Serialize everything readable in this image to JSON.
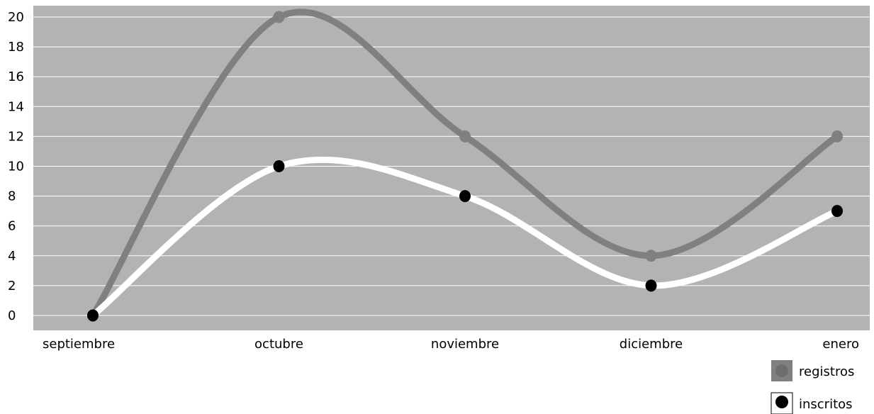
{
  "chart_data": {
    "type": "line",
    "title": "",
    "xlabel": "",
    "ylabel": "",
    "categories": [
      "septiembre",
      "octubre",
      "noviembre",
      "diciembre",
      "enero"
    ],
    "ylim": [
      0,
      20
    ],
    "yticks": [
      "0",
      "2",
      "4",
      "6",
      "8",
      "10",
      "12",
      "14",
      "16",
      "18",
      "20"
    ],
    "grid": true,
    "legend": "bottom-right",
    "plot_background": "#b3b3b3",
    "series": [
      {
        "name": "registros",
        "values": [
          0,
          20,
          12,
          4,
          12
        ],
        "color": "#808080"
      },
      {
        "name": "inscritos",
        "values": [
          0,
          10,
          8,
          2,
          7
        ],
        "color": "#ffffff",
        "marker_color": "#000000"
      }
    ]
  }
}
